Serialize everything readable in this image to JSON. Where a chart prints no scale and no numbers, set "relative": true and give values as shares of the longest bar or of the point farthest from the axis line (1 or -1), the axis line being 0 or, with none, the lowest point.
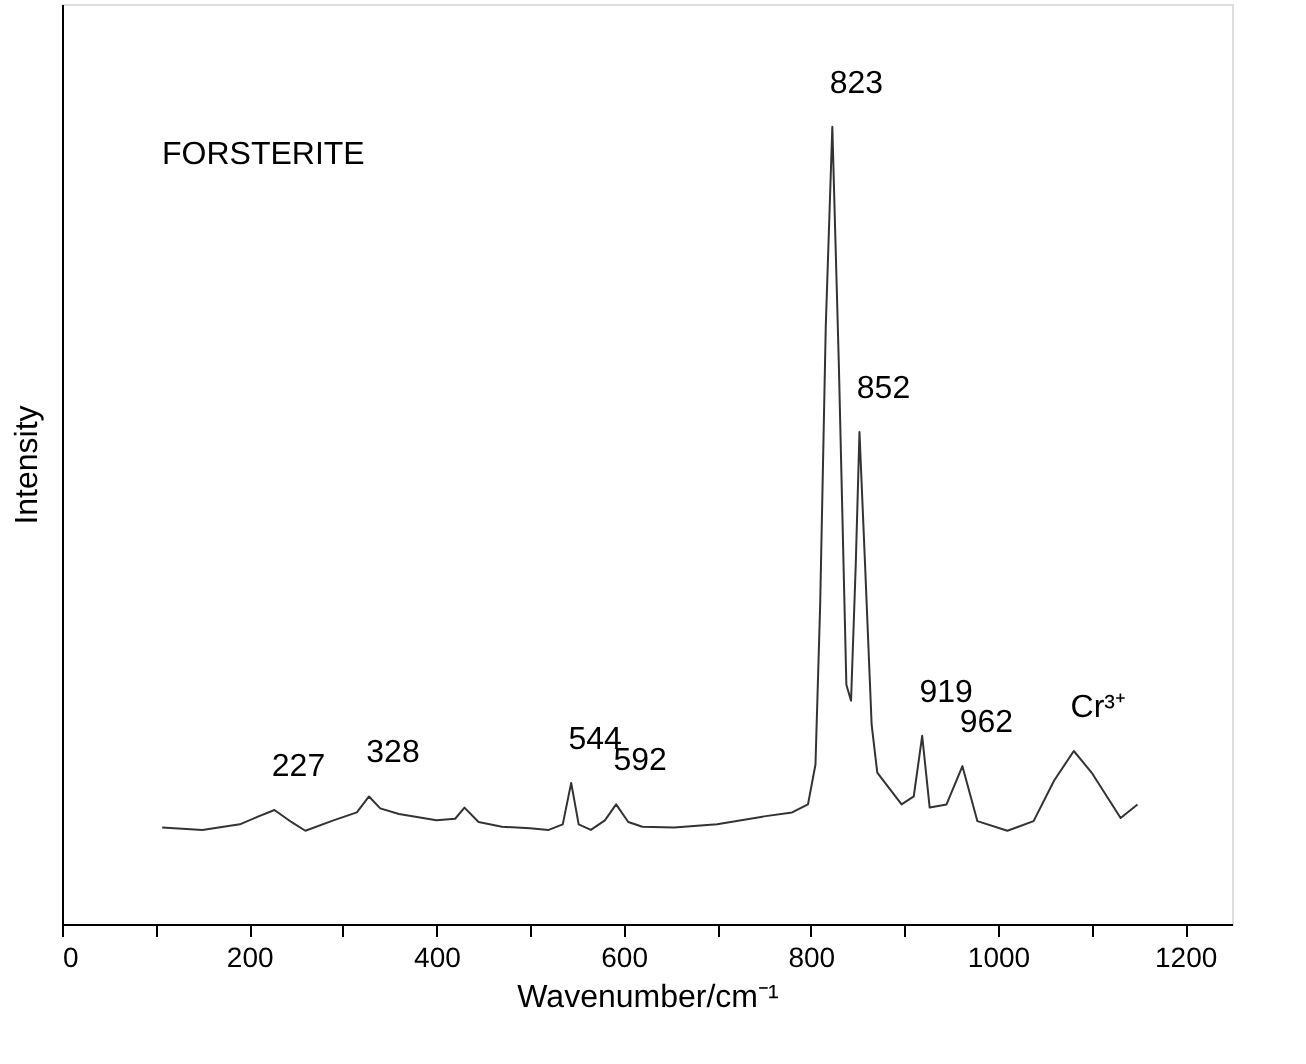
{
  "chart_data": {
    "type": "line",
    "relative": true,
    "xlabel": "Wavenumber/cm⁻¹",
    "ylabel": "Intensity",
    "xlim": [
      0,
      1250
    ],
    "xticks": [
      0,
      {
        "value": 100,
        "label": null
      },
      200,
      {
        "value": 300,
        "label": null
      },
      400,
      {
        "value": 500,
        "label": null
      },
      600,
      {
        "value": 700,
        "label": null
      },
      800,
      {
        "value": 900,
        "label": null
      },
      1000,
      {
        "value": 1100,
        "label": null
      },
      1200
    ],
    "grid": false,
    "marker": "none",
    "line_style": "solid",
    "series": [
      {
        "color": "#333333",
        "x": [
          107,
          150,
          190,
          210,
          227,
          245,
          260,
          290,
          315,
          328,
          340,
          360,
          400,
          420,
          430,
          445,
          470,
          500,
          520,
          535,
          544,
          552,
          565,
          580,
          592,
          605,
          620,
          654,
          700,
          750,
          780,
          797,
          805,
          810,
          816,
          823,
          830,
          838,
          843,
          848,
          852,
          858,
          865,
          871,
          897,
          910,
          919,
          927,
          945,
          962,
          978,
          1010,
          1038,
          1060,
          1081,
          1100,
          1131,
          1149
        ],
        "values": [
          0.121,
          0.118,
          0.125,
          0.135,
          0.143,
          0.128,
          0.117,
          0.13,
          0.14,
          0.16,
          0.145,
          0.138,
          0.13,
          0.132,
          0.146,
          0.128,
          0.122,
          0.12,
          0.118,
          0.125,
          0.177,
          0.125,
          0.118,
          0.13,
          0.15,
          0.128,
          0.122,
          0.121,
          0.125,
          0.135,
          0.14,
          0.15,
          0.2,
          0.4,
          0.75,
          1,
          0.7,
          0.3,
          0.28,
          0.45,
          0.617,
          0.45,
          0.25,
          0.19,
          0.15,
          0.16,
          0.236,
          0.146,
          0.15,
          0.198,
          0.129,
          0.117,
          0.129,
          0.18,
          0.217,
          0.19,
          0.133,
          0.15
        ]
      }
    ],
    "annotations": [
      "FORSTERITE",
      {
        "text": "227",
        "x": 227,
        "y": 0.143
      },
      {
        "text": "328",
        "x": 328,
        "y": 0.16
      },
      {
        "text": "544",
        "x": 544,
        "y": 0.177
      },
      {
        "text": "592",
        "x": 592,
        "y": 0.15
      },
      {
        "text": "823",
        "x": 823,
        "y": 1
      },
      {
        "text": "852",
        "x": 852,
        "y": 0.617
      },
      {
        "text": "919",
        "x": 919,
        "y": 0.236
      },
      {
        "text": "962",
        "x": 962,
        "y": 0.198
      },
      {
        "text": "Cr³⁺",
        "x": 1081,
        "y": 0.217
      }
    ]
  }
}
